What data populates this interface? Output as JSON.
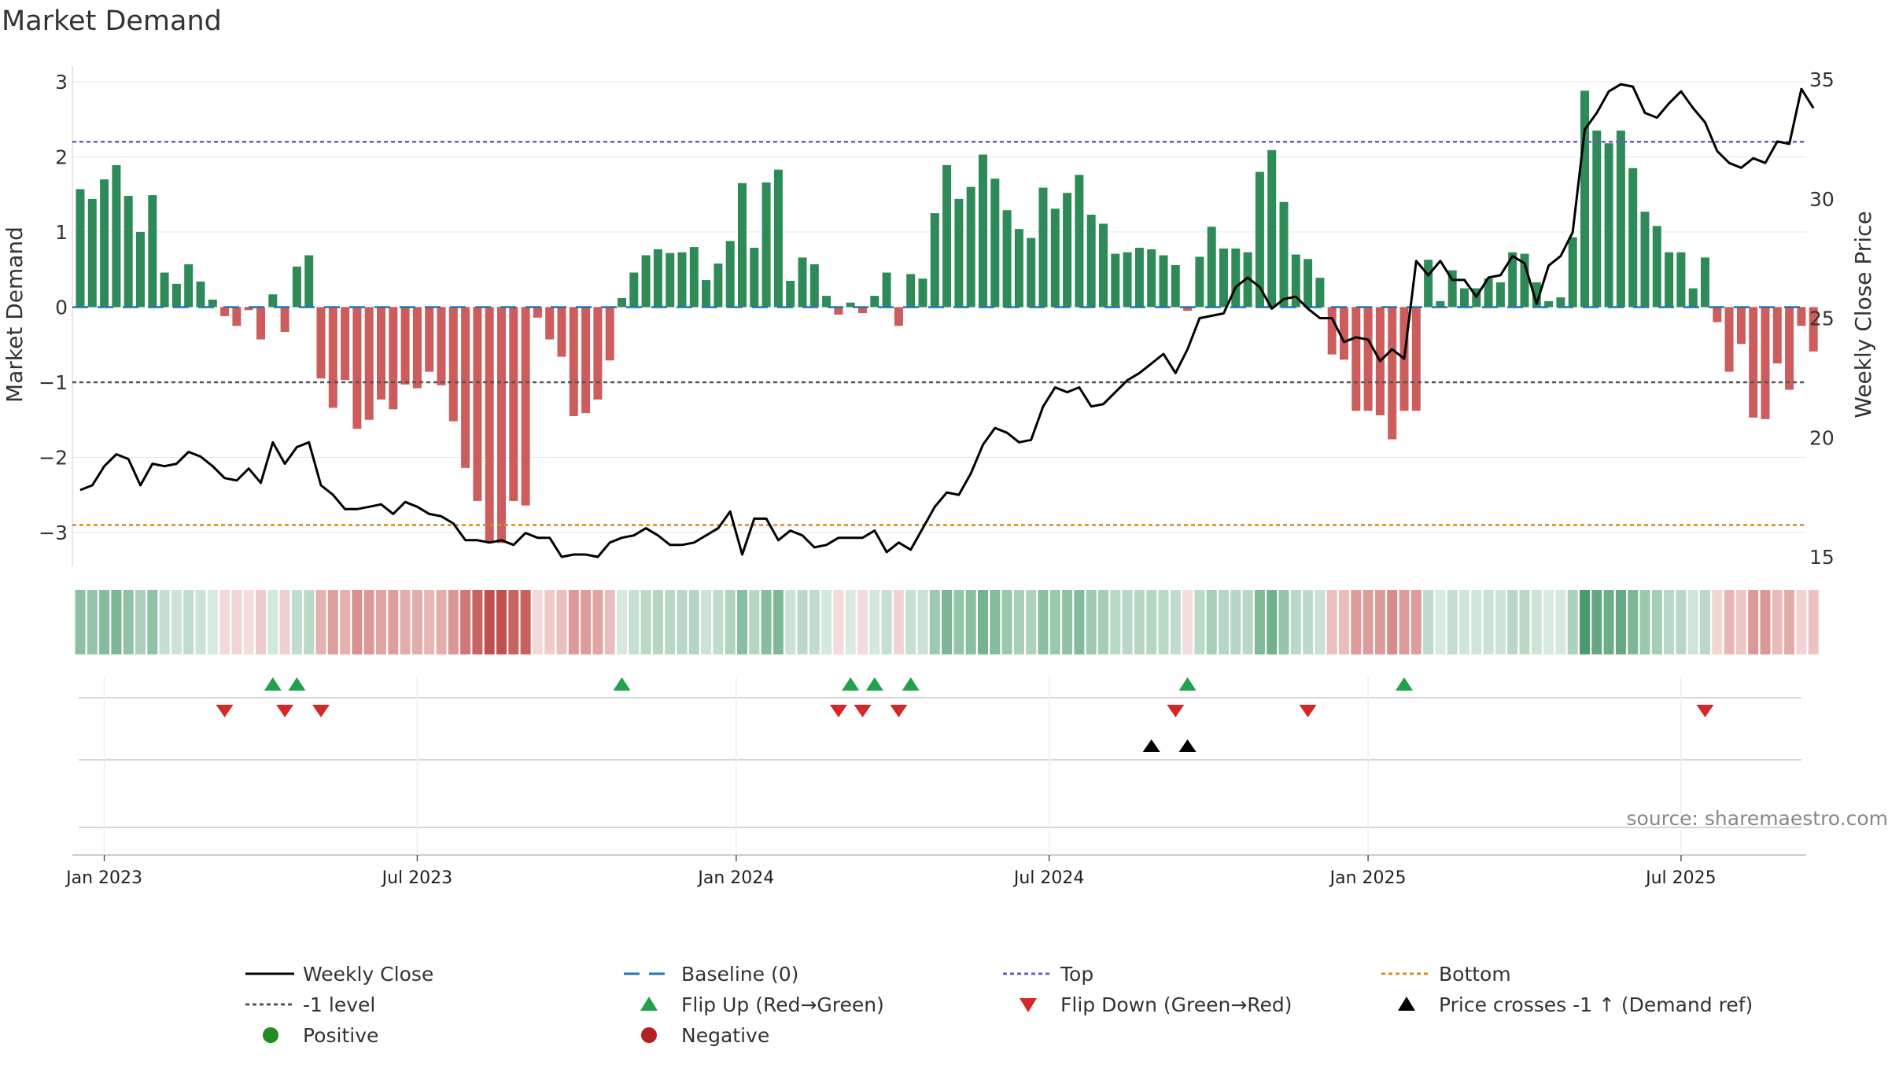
{
  "colors": {
    "bar_pos": "#2e8b57",
    "bar_neg": "#cd5c5c",
    "price_line": "#000000",
    "baseline": "#1f77b4",
    "top": "#6a5acd",
    "minus1": "#555555",
    "bottom": "#d98c1a",
    "flip_up": "#22a04b",
    "flip_down": "#d62728",
    "cross": "#000000",
    "positive_dot": "#228b22",
    "negative_dot": "#b22222",
    "grid": "#e6e6e6",
    "source": "#888888"
  },
  "chart_data": {
    "type": "bar",
    "title": "Market Demand",
    "ylabel": "Market Demand",
    "y2label": "Weekly Close Price",
    "ylim": [
      -3.45,
      3.25
    ],
    "y2lim": [
      15,
      35
    ],
    "yticks": [
      3,
      2,
      1,
      0,
      -1,
      -2,
      -3
    ],
    "yticklabels": [
      "3",
      "2",
      "1",
      "0",
      "−1",
      "−2",
      "−3"
    ],
    "y2ticks": [
      35,
      30,
      25,
      20,
      15
    ],
    "y2ticklabels": [
      "35",
      "30",
      "25",
      "20",
      "15"
    ],
    "x_start": "2022-12-19",
    "week_count": 145,
    "xticks": [
      {
        "label": "Jan 2023",
        "week": 2
      },
      {
        "label": "Jul 2023",
        "week": 28
      },
      {
        "label": "Jan 2024",
        "week": 54.5
      },
      {
        "label": "Jul 2024",
        "week": 80.5
      },
      {
        "label": "Jan 2025",
        "week": 107
      },
      {
        "label": "Jul 2025",
        "week": 133
      }
    ],
    "reference_lines": {
      "top": 2.2,
      "minus1": -1,
      "bottom": -2.9,
      "baseline": 0
    },
    "demand": [
      1.57,
      1.44,
      1.7,
      1.89,
      1.48,
      1.0,
      1.49,
      0.46,
      0.31,
      0.57,
      0.34,
      0.1,
      -0.12,
      -0.25,
      -0.04,
      -0.43,
      0.17,
      -0.33,
      0.54,
      0.69,
      -0.95,
      -1.34,
      -0.97,
      -1.62,
      -1.5,
      -1.23,
      -1.36,
      -1.03,
      -1.08,
      -0.86,
      -1.04,
      -1.52,
      -2.14,
      -2.58,
      -3.14,
      -3.14,
      -2.58,
      -2.64,
      -0.14,
      -0.43,
      -0.66,
      -1.45,
      -1.41,
      -1.23,
      -0.71,
      0.12,
      0.46,
      0.69,
      0.77,
      0.72,
      0.73,
      0.8,
      0.36,
      0.58,
      0.88,
      1.65,
      0.79,
      1.66,
      1.83,
      0.35,
      0.66,
      0.57,
      0.15,
      -0.1,
      0.06,
      -0.08,
      0.15,
      0.46,
      -0.25,
      0.44,
      0.38,
      1.25,
      1.89,
      1.44,
      1.6,
      2.03,
      1.71,
      1.29,
      1.04,
      0.92,
      1.59,
      1.31,
      1.52,
      1.76,
      1.23,
      1.11,
      0.71,
      0.73,
      0.79,
      0.77,
      0.69,
      0.56,
      -0.05,
      0.67,
      1.07,
      0.78,
      0.78,
      0.73,
      1.8,
      2.09,
      1.4,
      0.7,
      0.64,
      0.39,
      -0.63,
      -0.7,
      -1.38,
      -1.38,
      -1.44,
      -1.76,
      -1.38,
      -1.38,
      0.63,
      0.08,
      0.49,
      0.25,
      0.25,
      0.38,
      0.33,
      0.73,
      0.71,
      0.33,
      0.08,
      0.13,
      0.93,
      2.88,
      2.35,
      2.18,
      2.35,
      1.85,
      1.27,
      1.08,
      0.73,
      0.73,
      0.25,
      0.66,
      -0.2,
      -0.86,
      -0.49,
      -1.47,
      -1.49,
      -0.75,
      -1.1,
      -0.25,
      -0.59
    ],
    "close": [
      17.8,
      18.0,
      18.8,
      19.3,
      19.1,
      18.0,
      18.9,
      18.8,
      18.9,
      19.4,
      19.2,
      18.8,
      18.3,
      18.2,
      18.7,
      18.1,
      19.8,
      18.9,
      19.6,
      19.8,
      18.0,
      17.6,
      17.0,
      17.0,
      17.1,
      17.2,
      16.8,
      17.3,
      17.1,
      16.8,
      16.7,
      16.4,
      15.7,
      15.7,
      15.6,
      15.7,
      15.5,
      16.0,
      15.8,
      15.8,
      15.0,
      15.1,
      15.1,
      15.0,
      15.6,
      15.8,
      15.9,
      16.2,
      15.9,
      15.5,
      15.5,
      15.6,
      15.9,
      16.2,
      16.9,
      15.1,
      16.6,
      16.6,
      15.7,
      16.1,
      15.9,
      15.4,
      15.5,
      15.8,
      15.8,
      15.8,
      16.1,
      15.2,
      15.6,
      15.3,
      16.2,
      17.1,
      17.7,
      17.6,
      18.5,
      19.7,
      20.4,
      20.2,
      19.8,
      19.9,
      21.3,
      22.1,
      21.9,
      22.1,
      21.3,
      21.4,
      21.9,
      22.4,
      22.7,
      23.1,
      23.5,
      22.7,
      23.7,
      25.0,
      25.1,
      25.2,
      26.3,
      26.7,
      26.3,
      25.4,
      25.8,
      25.9,
      25.4,
      25.0,
      25.0,
      24.0,
      24.2,
      24.1,
      23.2,
      23.7,
      23.3,
      27.4,
      26.8,
      27.4,
      26.6,
      26.6,
      25.9,
      26.7,
      26.8,
      27.6,
      27.3,
      25.6,
      27.2,
      27.6,
      28.6,
      32.9,
      33.6,
      34.5,
      34.8,
      34.7,
      33.6,
      33.4,
      34.0,
      34.5,
      33.8,
      33.2,
      32.0,
      31.5,
      31.3,
      31.7,
      31.5,
      32.4,
      32.3,
      34.6,
      33.8
    ],
    "flip_up_weeks": [
      16,
      18,
      45,
      64,
      66,
      69,
      92,
      110
    ],
    "flip_down_weeks": [
      12,
      17,
      20,
      63,
      65,
      68,
      91,
      102,
      135
    ],
    "cross_weeks": [
      89,
      92
    ],
    "legend": [
      {
        "kind": "line",
        "label": "Weekly Close"
      },
      {
        "kind": "dash-baseline",
        "label": "Baseline (0)"
      },
      {
        "kind": "dot-top",
        "label": "Top"
      },
      {
        "kind": "dot-bottom",
        "label": "Bottom"
      },
      {
        "kind": "dot-minus1",
        "label": "-1 level"
      },
      {
        "kind": "tri-up-green",
        "label": "Flip Up (Red→Green)"
      },
      {
        "kind": "tri-down-red",
        "label": "Flip Down (Green→Red)"
      },
      {
        "kind": "tri-up-black",
        "label": "Price crosses -1 ↑ (Demand ref)"
      },
      {
        "kind": "dot-green",
        "label": "Positive"
      },
      {
        "kind": "dot-red",
        "label": "Negative"
      }
    ]
  },
  "source": "source: sharemaestro.com"
}
